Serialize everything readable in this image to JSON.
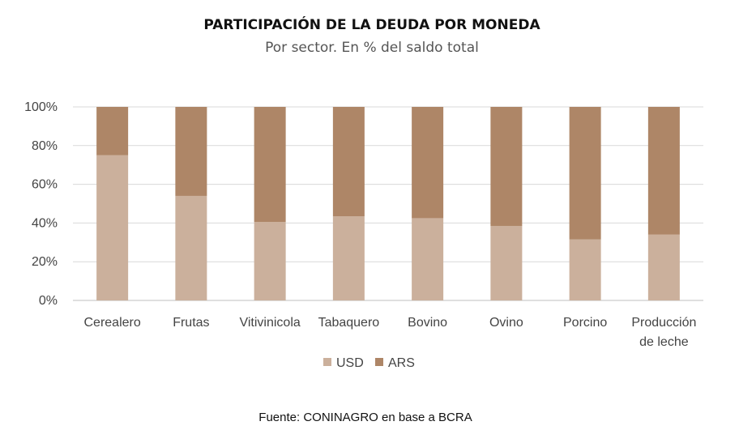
{
  "chart_data": {
    "type": "bar",
    "stacked": true,
    "title": "PARTICIPACIÓN DE LA DEUDA POR MONEDA",
    "subtitle": "Por sector. En % del saldo total",
    "categories": [
      "Cerealero",
      "Frutas",
      "Vitivinicola",
      "Tabaquero",
      "Bovino",
      "Ovino",
      "Porcino",
      "Producción de leche"
    ],
    "series": [
      {
        "name": "USD",
        "color": "#cbb09c",
        "values": [
          75,
          54,
          40.5,
          43.5,
          42.5,
          38.5,
          31.5,
          34
        ]
      },
      {
        "name": "ARS",
        "color": "#ae8667",
        "values": [
          25,
          46,
          59.5,
          56.5,
          57.5,
          61.5,
          68.5,
          66
        ]
      }
    ],
    "ylim": [
      0,
      100
    ],
    "yticks": [
      "0%",
      "20%",
      "40%",
      "60%",
      "80%",
      "100%"
    ],
    "grid": true,
    "legend_position": "bottom",
    "source": "Fuente: CONINAGRO en base a BCRA"
  }
}
